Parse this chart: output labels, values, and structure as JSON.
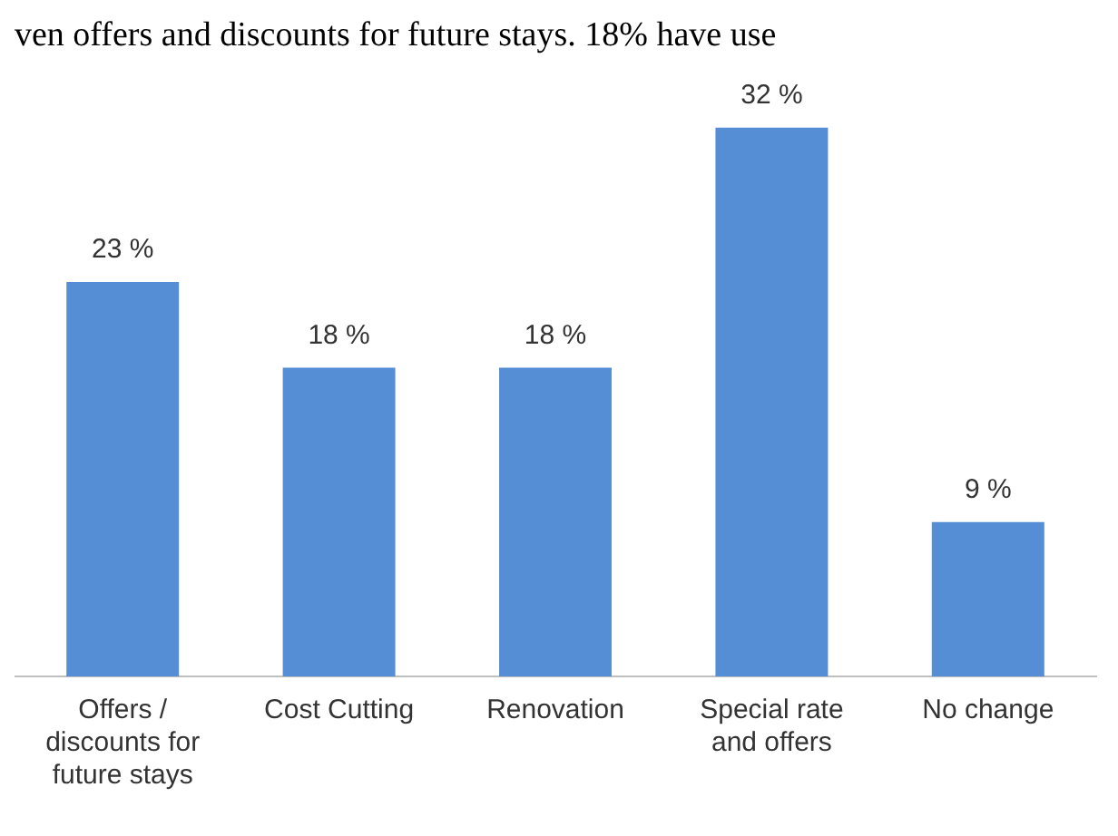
{
  "chart_data": {
    "type": "bar",
    "annotations": [
      "ven offers and discounts for future stays. 18% have use"
    ],
    "categories": [
      "Offers / discounts for future stays",
      "Cost Cutting",
      "Renovation",
      "Special rate and offers",
      "No change"
    ],
    "values": [
      23,
      18,
      18,
      32,
      9
    ],
    "value_labels": [
      "23 %",
      "18 %",
      "18 %",
      "32 %",
      "9 %"
    ],
    "color": "#558ed5",
    "grid": false,
    "legend": false
  }
}
